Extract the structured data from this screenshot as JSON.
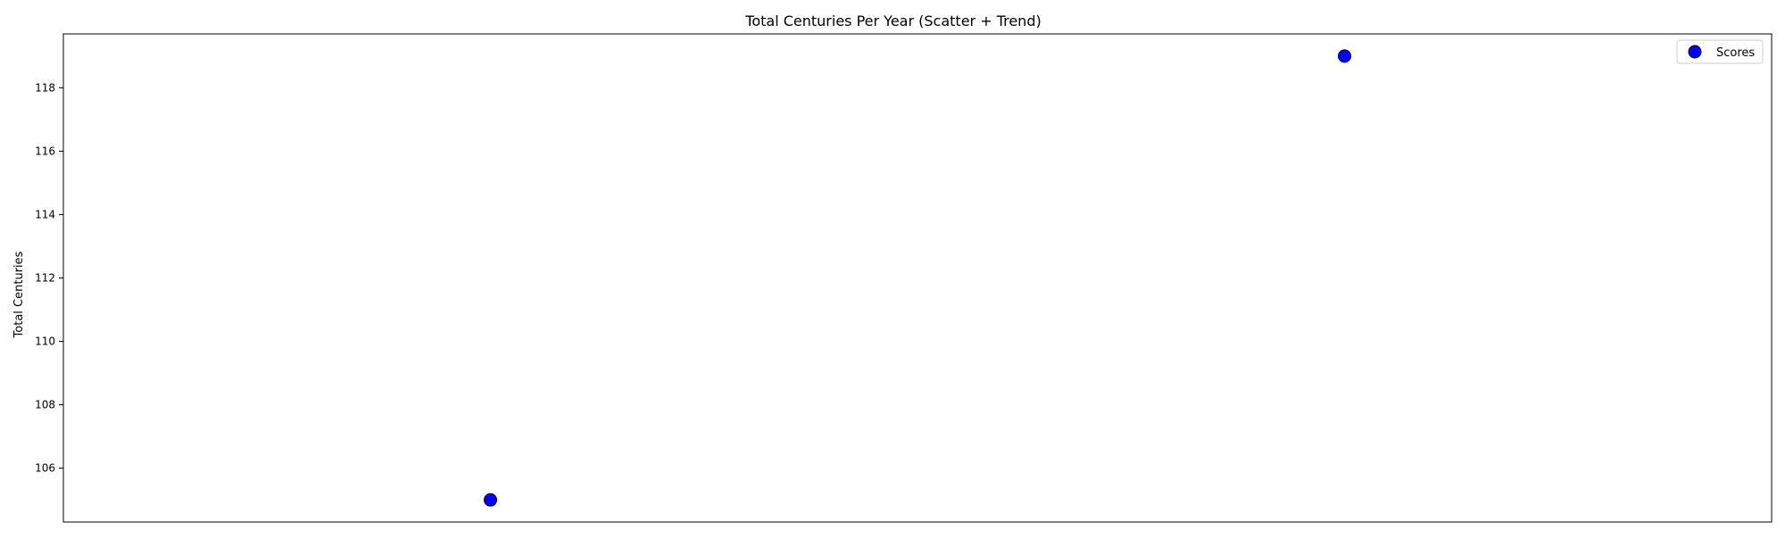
{
  "chart_data": {
    "type": "scatter",
    "title": "Total Centuries Per Year (Scatter + Trend)",
    "xlabel": "",
    "ylabel": "Total Centuries",
    "x": [
      1,
      2
    ],
    "xlim": [
      0.5,
      2.5
    ],
    "ylim": [
      104.3,
      119.7
    ],
    "yticks": [
      106,
      108,
      110,
      112,
      114,
      116,
      118
    ],
    "xticks_visible": false,
    "grid": false,
    "legend": {
      "position": "top-right",
      "entries": [
        {
          "label": "Scores",
          "color": "#0000ff"
        }
      ]
    },
    "series": [
      {
        "name": "Scores",
        "color": "#0000ff",
        "edgecolor": "#000000",
        "points": [
          {
            "x": 1,
            "y": 105
          },
          {
            "x": 2,
            "y": 119
          }
        ]
      }
    ]
  }
}
